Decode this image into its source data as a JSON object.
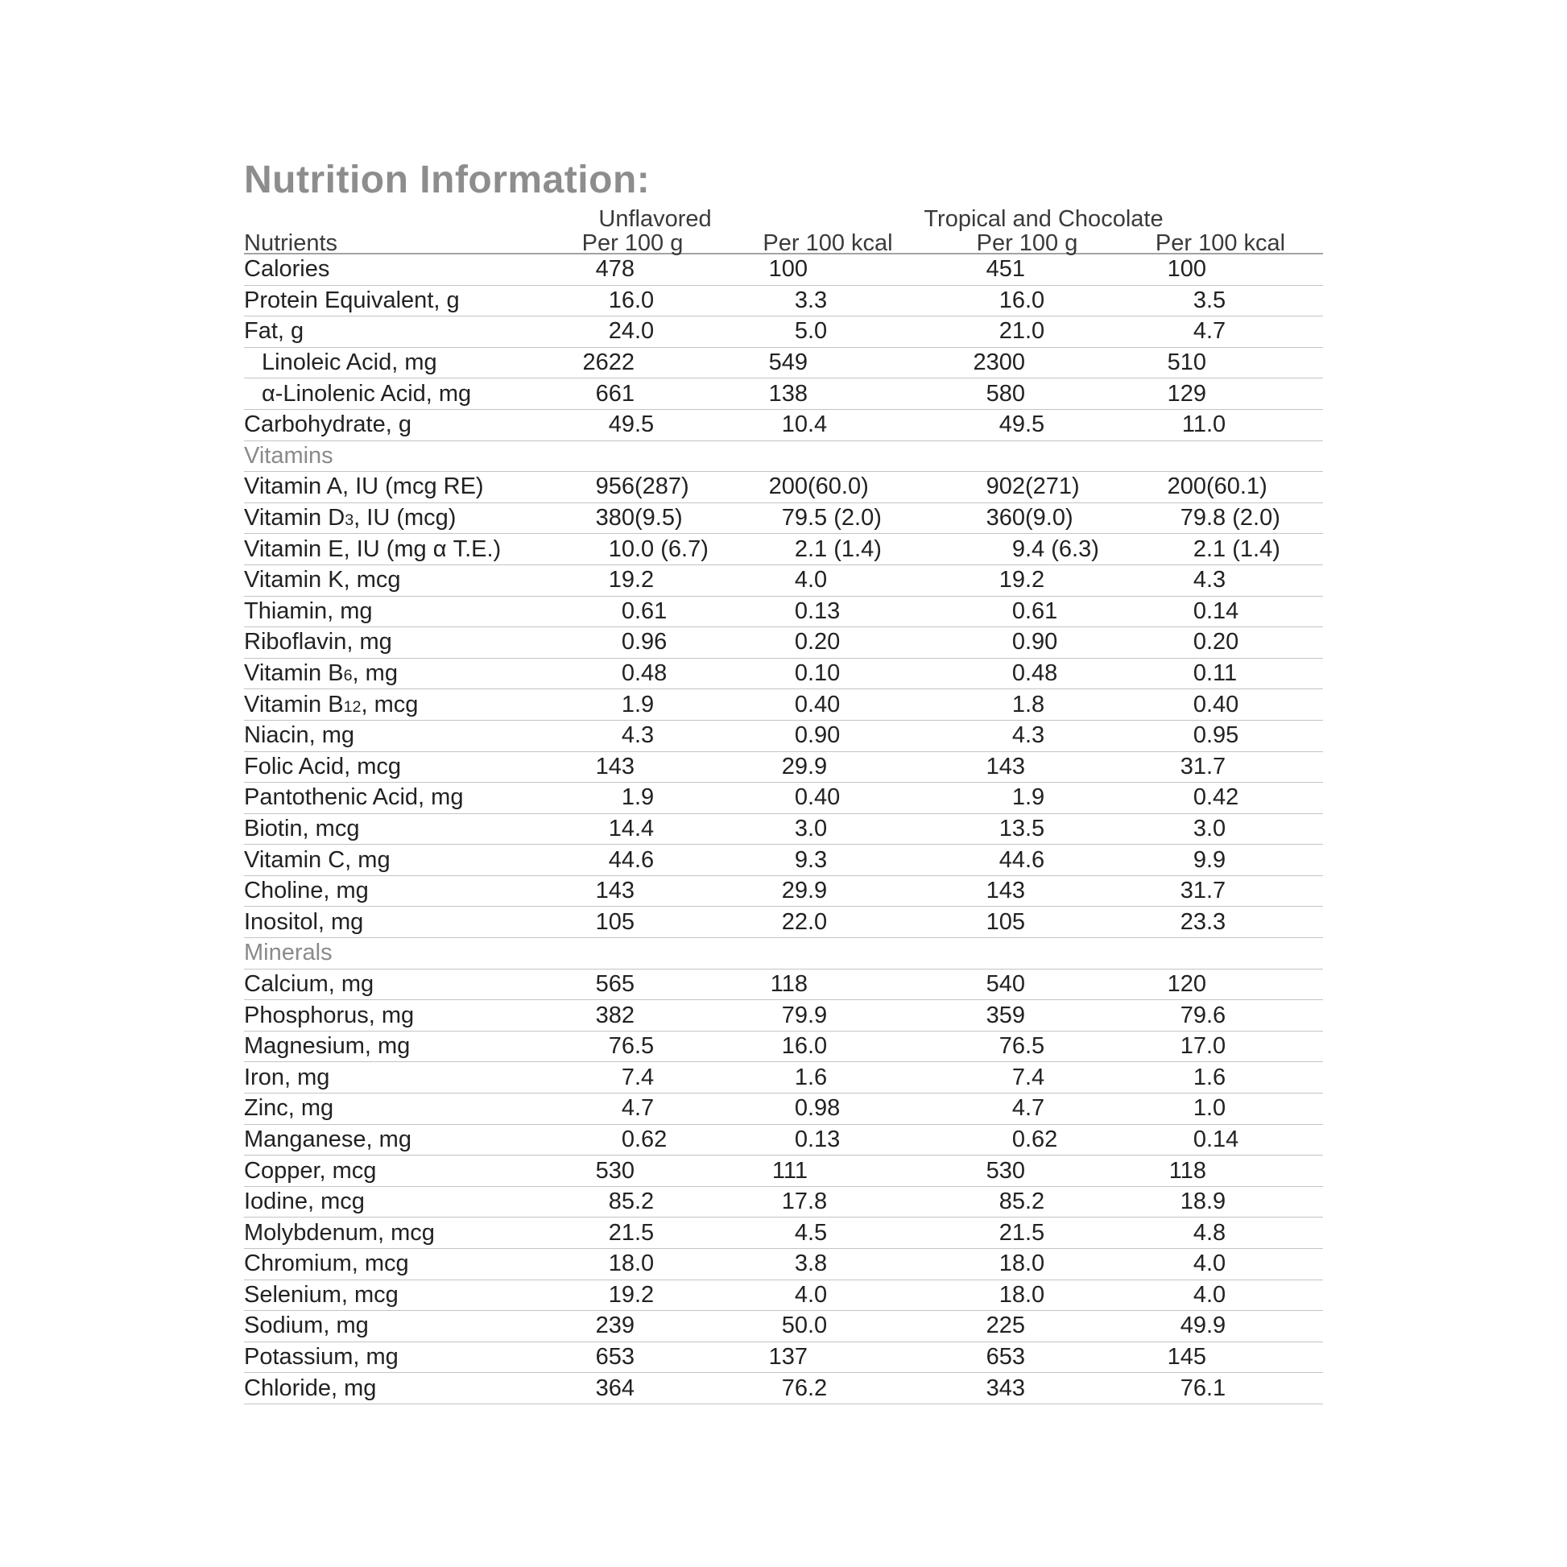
{
  "title": "Nutrition Information:",
  "table": {
    "group_headers": {
      "first": "Unflavored",
      "second": "Tropical and Chocolate"
    },
    "column_headers": {
      "nutrients": "Nutrients",
      "g1": "Per 100 g",
      "kcal1": "Per 100 kcal",
      "g2": "Per 100 g",
      "kcal2": "Per 100 kcal"
    },
    "rows": [
      {
        "label": "Calories",
        "values": [
          "478",
          "100",
          "451",
          "100"
        ]
      },
      {
        "label": "Protein Equivalent, g",
        "values": [
          "16.0",
          "3.3",
          "16.0",
          "3.5"
        ]
      },
      {
        "label": "Fat, g",
        "values": [
          "24.0",
          "5.0",
          "21.0",
          "4.7"
        ]
      },
      {
        "label": "Linoleic Acid, mg",
        "indent": true,
        "values": [
          "2622",
          "549",
          "2300",
          "510"
        ]
      },
      {
        "label": "α-Linolenic Acid, mg",
        "indent": true,
        "values": [
          "661",
          "138",
          "580",
          "129"
        ]
      },
      {
        "label": "Carbohydrate, g",
        "values": [
          "49.5",
          "10.4",
          "49.5",
          "11.0"
        ]
      },
      {
        "label": "Vitamins",
        "section": true,
        "values": []
      },
      {
        "label": "Vitamin A, IU (mcg RE)",
        "values": [
          "956 (287)",
          "200 (60.0)",
          "902 (271)",
          "200 (60.1)"
        ]
      },
      {
        "label": "Vitamin D{3}, IU (mcg)",
        "values": [
          "380 (9.5)",
          "79.5 (2.0)",
          "360 (9.0)",
          "79.8 (2.0)"
        ]
      },
      {
        "label": "Vitamin E, IU (mg α T.E.)",
        "values": [
          "10.0 (6.7)",
          "2.1 (1.4)",
          "9.4 (6.3)",
          "2.1 (1.4)"
        ]
      },
      {
        "label": "Vitamin K, mcg",
        "values": [
          "19.2",
          "4.0",
          "19.2",
          "4.3"
        ]
      },
      {
        "label": "Thiamin, mg",
        "values": [
          "0.61",
          "0.13",
          "0.61",
          "0.14"
        ]
      },
      {
        "label": "Riboflavin, mg",
        "values": [
          "0.96",
          "0.20",
          "0.90",
          "0.20"
        ]
      },
      {
        "label": "Vitamin B{6}, mg",
        "values": [
          "0.48",
          "0.10",
          "0.48",
          "0.11"
        ]
      },
      {
        "label": "Vitamin B{12}, mcg",
        "values": [
          "1.9",
          "0.40",
          "1.8",
          "0.40"
        ]
      },
      {
        "label": "Niacin, mg",
        "values": [
          "4.3",
          "0.90",
          "4.3",
          "0.95"
        ]
      },
      {
        "label": "Folic Acid, mcg",
        "values": [
          "143",
          "29.9",
          "143",
          "31.7"
        ]
      },
      {
        "label": "Pantothenic Acid, mg",
        "values": [
          "1.9",
          "0.40",
          "1.9",
          "0.42"
        ]
      },
      {
        "label": "Biotin, mcg",
        "values": [
          "14.4",
          "3.0",
          "13.5",
          "3.0"
        ]
      },
      {
        "label": "Vitamin C, mg",
        "values": [
          "44.6",
          "9.3",
          "44.6",
          "9.9"
        ]
      },
      {
        "label": "Choline, mg",
        "values": [
          "143",
          "29.9",
          "143",
          "31.7"
        ]
      },
      {
        "label": "Inositol, mg",
        "values": [
          "105",
          "22.0",
          "105",
          "23.3"
        ]
      },
      {
        "label": "Minerals",
        "section": true,
        "values": []
      },
      {
        "label": "Calcium, mg",
        "values": [
          "565",
          "118",
          "540",
          "120"
        ]
      },
      {
        "label": "Phosphorus, mg",
        "values": [
          "382",
          "79.9",
          "359",
          "79.6"
        ]
      },
      {
        "label": "Magnesium, mg",
        "values": [
          "76.5",
          "16.0",
          "76.5",
          "17.0"
        ]
      },
      {
        "label": "Iron, mg",
        "values": [
          "7.4",
          "1.6",
          "7.4",
          "1.6"
        ]
      },
      {
        "label": "Zinc, mg",
        "values": [
          "4.7",
          "0.98",
          "4.7",
          "1.0"
        ]
      },
      {
        "label": "Manganese, mg",
        "values": [
          "0.62",
          "0.13",
          "0.62",
          "0.14"
        ]
      },
      {
        "label": "Copper, mcg",
        "values": [
          "530",
          "111",
          "530",
          "118"
        ]
      },
      {
        "label": "Iodine, mcg",
        "values": [
          "85.2",
          "17.8",
          "85.2",
          "18.9"
        ]
      },
      {
        "label": "Molybdenum, mcg",
        "values": [
          "21.5",
          "4.5",
          "21.5",
          "4.8"
        ]
      },
      {
        "label": "Chromium, mcg",
        "values": [
          "18.0",
          "3.8",
          "18.0",
          "4.0"
        ]
      },
      {
        "label": "Selenium, mcg",
        "values": [
          "19.2",
          "4.0",
          "18.0",
          "4.0"
        ]
      },
      {
        "label": "Sodium, mg",
        "values": [
          "239",
          "50.0",
          "225",
          "49.9"
        ]
      },
      {
        "label": "Potassium, mg",
        "values": [
          "653",
          "137",
          "653",
          "145"
        ]
      },
      {
        "label": "Chloride, mg",
        "values": [
          "364",
          "76.2",
          "343",
          "76.1"
        ]
      }
    ]
  },
  "colors": {
    "title_gray": "#8d8d8d",
    "section_gray": "#8a8a8a",
    "text_dark": "#222222",
    "rule_light": "#c4c4c4",
    "rule_header": "#a3a3a3"
  }
}
